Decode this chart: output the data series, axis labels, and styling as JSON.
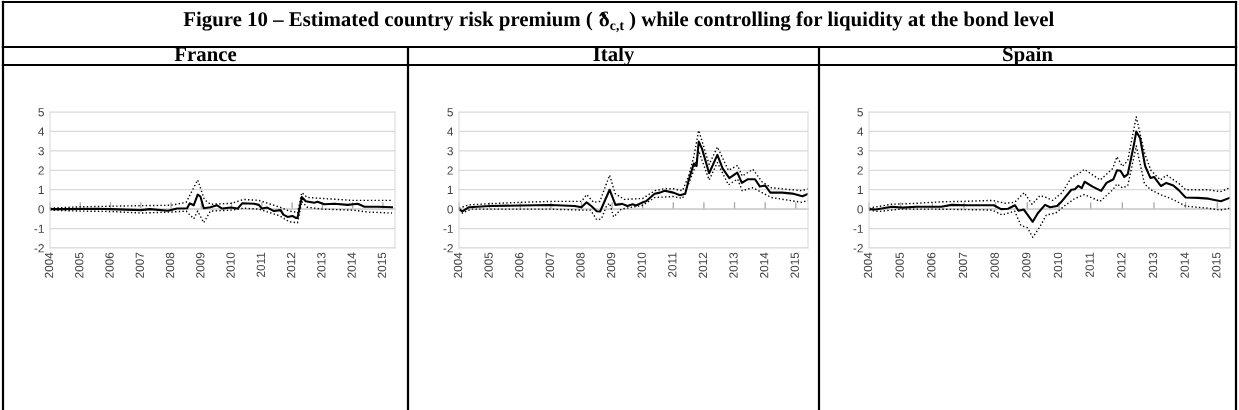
{
  "chart_data": [
    {
      "type": "line",
      "title": "France",
      "annotations": [
        "Figure 10 – Estimated country risk premium ( δ̂$_{c,t}$ ) while controlling for liquidity at the bond level"
      ],
      "xlim": [
        2004,
        2015.4
      ],
      "xticks": [
        2004,
        2005,
        2006,
        2007,
        2008,
        2009,
        2010,
        2011,
        2012,
        2013,
        2014,
        2015
      ],
      "ylim": [
        -2,
        5
      ],
      "yticks": [
        -2,
        -1,
        0,
        1,
        2,
        3,
        4,
        5
      ],
      "grid": "y",
      "series": [
        {
          "color": "#000000",
          "line_style": "solid",
          "x": [
            2004,
            2004.44,
            2005.55,
            2006.0,
            2007.0,
            2007.3,
            2007.9,
            2008.2,
            2008.53,
            2008.62,
            2008.75,
            2008.88,
            2008.97,
            2009.08,
            2009.3,
            2009.52,
            2009.69,
            2009.97,
            2010.2,
            2010.35,
            2010.74,
            2010.9,
            2011.0,
            2011.18,
            2011.4,
            2011.62,
            2011.71,
            2011.85,
            2012.01,
            2012.12,
            2012.18,
            2012.32,
            2012.45,
            2012.73,
            2012.84,
            2013.06,
            2013.4,
            2013.84,
            2014.17,
            2014.39,
            2014.83,
            2015.3
          ],
          "values": [
            0,
            0,
            0.02,
            0,
            -0.05,
            0,
            -0.08,
            0.03,
            0.05,
            0.3,
            0.2,
            0.75,
            0.65,
            0.05,
            0.1,
            0.2,
            0.03,
            0.08,
            0.03,
            0.3,
            0.28,
            0.22,
            0.03,
            0.08,
            -0.1,
            -0.05,
            -0.28,
            -0.4,
            -0.35,
            -0.45,
            -0.45,
            0.62,
            0.41,
            0.33,
            0.38,
            0.25,
            0.28,
            0.22,
            0.28,
            0.12,
            0.12,
            0.1
          ]
        },
        {
          "color": "#000000",
          "line_style": "dotted",
          "x": [
            2004,
            2005,
            2006,
            2007,
            2008,
            2008.5,
            2008.88,
            2009.1,
            2009.3,
            2010,
            2010.4,
            2010.9,
            2011.2,
            2011.6,
            2011.9,
            2012.1,
            2012.18,
            2012.32,
            2012.5,
            2013,
            2014,
            2015.3
          ],
          "values": [
            0.05,
            0.12,
            0.15,
            0.18,
            0.2,
            0.35,
            1.5,
            0.5,
            0.25,
            0.3,
            0.5,
            0.45,
            0.3,
            0.1,
            -0.1,
            -0.15,
            -0.2,
            0.85,
            0.6,
            0.55,
            0.45,
            0.45
          ]
        },
        {
          "color": "#000000",
          "line_style": "dotted",
          "x": [
            2004,
            2005,
            2006,
            2007,
            2008,
            2008.5,
            2008.75,
            2008.88,
            2009.08,
            2009.3,
            2010,
            2010.4,
            2010.9,
            2011.2,
            2011.6,
            2011.9,
            2012.18,
            2012.32,
            2012.5,
            2013,
            2014,
            2014.5,
            2015.3
          ],
          "values": [
            -0.05,
            -0.1,
            -0.12,
            -0.2,
            -0.15,
            -0.1,
            -0.5,
            -0.1,
            -0.7,
            -0.1,
            -0.05,
            0.05,
            0.0,
            -0.15,
            -0.35,
            -0.65,
            -0.7,
            0.4,
            0.1,
            0.0,
            -0.05,
            -0.15,
            -0.2
          ]
        }
      ]
    },
    {
      "type": "line",
      "title": "Italy",
      "xlim": [
        2004,
        2015.4
      ],
      "xticks": [
        2004,
        2005,
        2006,
        2007,
        2008,
        2009,
        2010,
        2011,
        2012,
        2013,
        2014,
        2015
      ],
      "ylim": [
        -2,
        5
      ],
      "yticks": [
        -2,
        -1,
        0,
        1,
        2,
        3,
        4,
        5
      ],
      "grid": "y",
      "series": [
        {
          "color": "#000000",
          "line_style": "solid",
          "x": [
            2004,
            2004.11,
            2004.33,
            2005.0,
            2006,
            2007,
            2007.78,
            2008,
            2008.17,
            2008.33,
            2008.5,
            2008.61,
            2008.92,
            2009.11,
            2009.33,
            2009.5,
            2009.67,
            2009.78,
            2010,
            2010.11,
            2010.39,
            2010.56,
            2010.72,
            2011.0,
            2011.22,
            2011.39,
            2011.5,
            2011.67,
            2011.76,
            2011.83,
            2011.94,
            2012.17,
            2012.44,
            2012.61,
            2012.83,
            2013.09,
            2013.24,
            2013.44,
            2013.67,
            2013.83,
            2014,
            2014.17,
            2014.56,
            2014.89,
            2015.22,
            2015.4
          ],
          "values": [
            0,
            -0.12,
            0.1,
            0.16,
            0.19,
            0.21,
            0.16,
            0.1,
            0.35,
            0.15,
            -0.11,
            -0.12,
            1.0,
            0.22,
            0.27,
            0.16,
            0.25,
            0.19,
            0.35,
            0.41,
            0.79,
            0.85,
            0.95,
            0.85,
            0.72,
            0.79,
            1.48,
            2.35,
            2.22,
            3.48,
            3.1,
            1.85,
            2.79,
            2.1,
            1.6,
            1.88,
            1.35,
            1.54,
            1.54,
            1.16,
            1.22,
            0.85,
            0.85,
            0.8,
            0.66,
            0.79
          ]
        },
        {
          "color": "#000000",
          "line_style": "dotted",
          "x": [
            2004,
            2004.33,
            2005,
            2006,
            2007,
            2008,
            2008.17,
            2008.4,
            2008.6,
            2008.92,
            2009.1,
            2009.4,
            2010,
            2010.4,
            2010.7,
            2011,
            2011.3,
            2011.5,
            2011.67,
            2011.83,
            2012.17,
            2012.44,
            2012.8,
            2013.1,
            2013.25,
            2013.6,
            2013.9,
            2014.2,
            2015.2,
            2015.4
          ],
          "values": [
            0.05,
            0.22,
            0.28,
            0.35,
            0.4,
            0.4,
            0.75,
            0.35,
            0.4,
            1.75,
            0.8,
            0.5,
            0.55,
            0.95,
            1.05,
            1.05,
            0.95,
            1.7,
            2.7,
            4.05,
            2.3,
            3.2,
            2.0,
            2.25,
            1.7,
            2.05,
            1.4,
            1.1,
            0.95,
            1.05
          ]
        },
        {
          "color": "#000000",
          "line_style": "dotted",
          "x": [
            2004,
            2004.11,
            2004.4,
            2005,
            2006,
            2007,
            2008,
            2008.3,
            2008.5,
            2008.65,
            2008.83,
            2008.92,
            2009.05,
            2009.3,
            2010,
            2010.4,
            2011,
            2011.3,
            2011.5,
            2011.67,
            2011.83,
            2012.17,
            2012.44,
            2012.8,
            2013.1,
            2013.25,
            2013.6,
            2013.9,
            2014.2,
            2015.2,
            2015.4
          ],
          "values": [
            -0.05,
            -0.2,
            0.0,
            0.0,
            0.0,
            0.0,
            -0.05,
            -0.05,
            -0.55,
            -0.5,
            0.2,
            0.3,
            -0.4,
            0.0,
            0.2,
            0.6,
            0.65,
            0.55,
            1.3,
            2.0,
            3.0,
            1.5,
            2.4,
            1.25,
            1.55,
            0.95,
            1.1,
            0.85,
            0.6,
            0.35,
            0.45
          ]
        }
      ]
    },
    {
      "type": "line",
      "title": "Spain",
      "xlim": [
        2004,
        2015.4
      ],
      "xticks": [
        2004,
        2005,
        2006,
        2007,
        2008,
        2009,
        2010,
        2011,
        2012,
        2013,
        2014,
        2015
      ],
      "ylim": [
        -2,
        5
      ],
      "yticks": [
        -2,
        -1,
        0,
        1,
        2,
        3,
        4,
        5
      ],
      "grid": "y",
      "series": [
        {
          "color": "#000000",
          "line_style": "solid",
          "x": [
            2004,
            2004.22,
            2004.72,
            2005.06,
            2005.5,
            2006.28,
            2006.61,
            2007.06,
            2007.5,
            2007.94,
            2008.17,
            2008.39,
            2008.61,
            2008.72,
            2008.89,
            2009.17,
            2009.33,
            2009.56,
            2009.72,
            2009.94,
            2010.06,
            2010.39,
            2010.5,
            2010.61,
            2010.72,
            2010.81,
            2011.06,
            2011.33,
            2011.5,
            2011.72,
            2011.83,
            2011.94,
            2012.06,
            2012.17,
            2012.37,
            2012.44,
            2012.56,
            2012.72,
            2012.89,
            2013.0,
            2013.22,
            2013.39,
            2013.61,
            2013.78,
            2014.0,
            2014.39,
            2014.72,
            2015.11,
            2015.39
          ],
          "values": [
            0,
            -0.02,
            0.12,
            0.08,
            0.12,
            0.12,
            0.22,
            0.2,
            0.2,
            0.2,
            0,
            0.02,
            0.2,
            -0.08,
            -0.02,
            -0.65,
            -0.21,
            0.22,
            0.1,
            0.16,
            0.35,
            1.0,
            1.02,
            1.2,
            1.08,
            1.41,
            1.16,
            0.94,
            1.35,
            1.54,
            2.0,
            1.98,
            1.66,
            1.79,
            3.35,
            4.0,
            3.66,
            2.22,
            1.6,
            1.66,
            1.19,
            1.35,
            1.22,
            0.98,
            0.6,
            0.58,
            0.54,
            0.41,
            0.58
          ]
        },
        {
          "color": "#000000",
          "line_style": "dotted",
          "x": [
            2004,
            2004.7,
            2005.5,
            2006.3,
            2007,
            2007.9,
            2008.3,
            2008.6,
            2008.9,
            2009.15,
            2009.4,
            2009.6,
            2009.8,
            2010.1,
            2010.4,
            2010.6,
            2010.8,
            2011.3,
            2011.7,
            2011.83,
            2012.0,
            2012.17,
            2012.44,
            2012.7,
            2012.9,
            2013.2,
            2013.4,
            2013.8,
            2014.0,
            2014.7,
            2015.1,
            2015.4
          ],
          "values": [
            0.05,
            0.25,
            0.3,
            0.38,
            0.4,
            0.45,
            0.3,
            0.35,
            0.85,
            0.25,
            0.7,
            0.6,
            0.45,
            0.85,
            1.65,
            1.8,
            2.05,
            1.5,
            2.1,
            2.7,
            2.2,
            2.5,
            4.75,
            2.9,
            2.0,
            1.5,
            1.75,
            1.3,
            1.0,
            1.0,
            0.9,
            1.1
          ]
        },
        {
          "color": "#000000",
          "line_style": "dotted",
          "x": [
            2004,
            2004.3,
            2005,
            2006,
            2007,
            2007.9,
            2008.2,
            2008.6,
            2008.8,
            2009.0,
            2009.17,
            2009.4,
            2009.6,
            2009.9,
            2010.2,
            2010.5,
            2010.8,
            2011.3,
            2011.7,
            2011.83,
            2012.0,
            2012.17,
            2012.44,
            2012.7,
            2012.9,
            2013.2,
            2013.6,
            2014.0,
            2014.7,
            2015.1,
            2015.4
          ],
          "values": [
            -0.05,
            -0.12,
            0.0,
            0.0,
            -0.02,
            -0.05,
            -0.3,
            -0.1,
            -0.85,
            -0.95,
            -1.45,
            -0.9,
            -0.3,
            -0.2,
            0.2,
            0.55,
            0.75,
            0.4,
            1.0,
            1.3,
            1.1,
            1.2,
            3.25,
            1.3,
            1.0,
            0.75,
            0.5,
            0.15,
            0.05,
            -0.05,
            0.05
          ]
        }
      ]
    }
  ]
}
